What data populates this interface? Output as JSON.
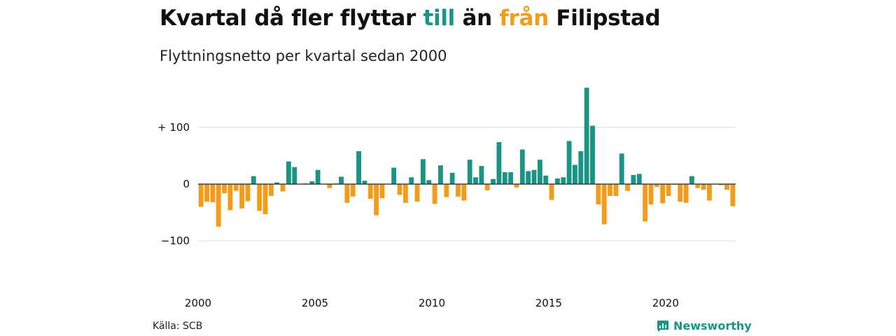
{
  "header": {
    "title_part1": "Kvartal då fler flyttar ",
    "title_pos": "till",
    "title_part2": " än ",
    "title_neg": "från",
    "title_part3": " Filipstad",
    "subtitle": "Flyttningsnetto per kvartal sedan 2000"
  },
  "footer": {
    "source": "Källa: SCB",
    "brand": "Newsworthy"
  },
  "colors": {
    "positive": "#1a9484",
    "negative": "#f39c1a",
    "grid": "#dddddd",
    "zero_line": "#222222"
  },
  "chart_data": {
    "type": "bar",
    "x_start": 2000,
    "periods_per_year": 4,
    "ylim": [
      -160,
      170
    ],
    "y_ticks": [
      {
        "value": 100,
        "label": "+ 100"
      },
      {
        "value": 0,
        "label": "0"
      },
      {
        "value": -100,
        "label": "−100"
      }
    ],
    "x_ticks": [
      "2000",
      "2005",
      "2010",
      "2015",
      "2020"
    ],
    "grid": true,
    "values": [
      -40,
      -31,
      -32,
      -75,
      -16,
      -46,
      -12,
      -43,
      -30,
      14,
      -47,
      -53,
      -21,
      3,
      -13,
      40,
      30,
      0,
      1,
      5,
      25,
      0,
      -7,
      1,
      13,
      -33,
      -22,
      58,
      6,
      -26,
      -55,
      -25,
      0,
      29,
      -19,
      -33,
      12,
      -31,
      44,
      7,
      -35,
      33,
      -23,
      20,
      -22,
      -29,
      43,
      12,
      32,
      -11,
      9,
      74,
      21,
      21,
      -6,
      61,
      23,
      25,
      43,
      15,
      -28,
      10,
      12,
      76,
      34,
      58,
      170,
      103,
      -36,
      -71,
      -21,
      -21,
      54,
      -12,
      16,
      18,
      -66,
      -36,
      -5,
      -34,
      -21,
      -1,
      -31,
      -33,
      14,
      -7,
      -10,
      -29,
      0,
      -2,
      -10,
      -39
    ]
  }
}
